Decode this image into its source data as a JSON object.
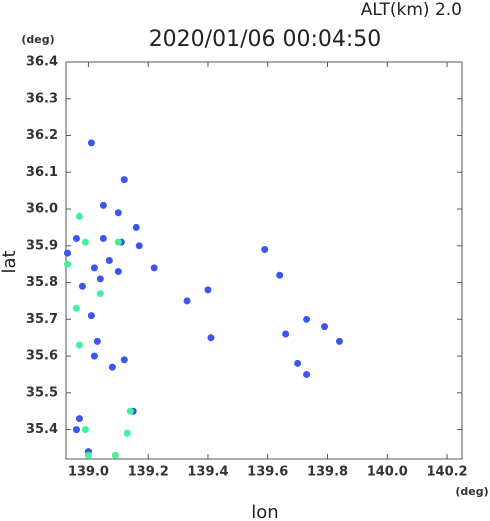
{
  "chart_data": {
    "type": "scatter",
    "title": "2020/01/06 00:04:50",
    "subtitle": "ALT(km) 2.0",
    "y_unit": "(deg)",
    "x_unit": "(deg)",
    "y_label": "lat",
    "x_label": "lon",
    "xlim": [
      138.925,
      140.25
    ],
    "ylim": [
      35.32,
      36.4
    ],
    "xticks": [
      {
        "value": 139,
        "label": "139.0"
      },
      139.2,
      139.4,
      139.6,
      139.8,
      {
        "value": 140,
        "label": "140.0"
      },
      140.2
    ],
    "yticks": [
      35.4,
      35.5,
      35.6,
      35.7,
      35.8,
      35.9,
      {
        "value": 36,
        "label": "36.0"
      },
      36.1,
      36.2,
      36.3,
      36.4
    ],
    "series": [
      {
        "color": "#3a55f0",
        "x": [
          139.01,
          139.05,
          139.1,
          138.96,
          139.05,
          139.11,
          138.93,
          139.02,
          139.07,
          139.1,
          138.98,
          139.04,
          139.01,
          139.03,
          139.02,
          139.08,
          139.12,
          138.97,
          138.96,
          139.0,
          139.15,
          139.17,
          139.16,
          139.41,
          139.33,
          139.59,
          139.64,
          139.66,
          139.73,
          139.79,
          139.84,
          139.7,
          139.73,
          139.12,
          139.22,
          139.4
        ],
        "values": [
          36.18,
          36.01,
          35.99,
          35.92,
          35.92,
          35.91,
          35.88,
          35.84,
          35.86,
          35.83,
          35.79,
          35.81,
          35.71,
          35.64,
          35.6,
          35.57,
          35.59,
          35.43,
          35.4,
          35.34,
          35.45,
          35.9,
          35.95,
          35.65,
          35.75,
          35.89,
          35.82,
          35.66,
          35.7,
          35.68,
          35.64,
          35.58,
          35.55,
          36.08,
          35.84,
          35.78
        ]
      },
      {
        "color": "#44f0a0",
        "x": [
          138.97,
          138.93,
          138.96,
          138.97,
          138.99,
          139.0,
          139.09,
          139.13,
          139.14,
          139.04,
          138.99,
          139.1
        ],
        "values": [
          35.98,
          35.85,
          35.73,
          35.63,
          35.4,
          35.33,
          35.33,
          35.39,
          35.45,
          35.77,
          35.91,
          35.91
        ]
      }
    ]
  }
}
